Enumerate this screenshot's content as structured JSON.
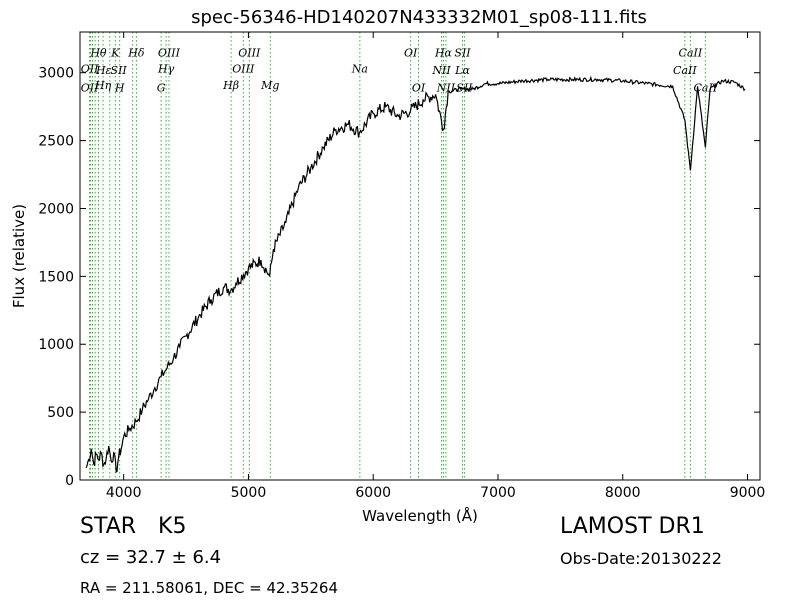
{
  "chart_data": {
    "type": "line",
    "title": "spec-56346-HD140207N433332M01_sp08-111.fits",
    "xlabel": "Wavelength (Å)",
    "ylabel": "Flux (relative)",
    "xlim": [
      3650,
      9100
    ],
    "ylim": [
      0,
      3300
    ],
    "xticks": [
      4000,
      5000,
      6000,
      7000,
      8000,
      9000
    ],
    "yticks": [
      0,
      500,
      1000,
      1500,
      2000,
      2500,
      3000
    ],
    "grid": false,
    "series": [
      {
        "color": "#000000",
        "x": [
          3700,
          3720,
          3740,
          3760,
          3780,
          3800,
          3820,
          3840,
          3860,
          3880,
          3900,
          3920,
          3940,
          3960,
          3980,
          4000,
          4050,
          4100,
          4150,
          4200,
          4250,
          4300,
          4350,
          4400,
          4450,
          4500,
          4600,
          4700,
          4800,
          4860,
          4900,
          5000,
          5100,
          5170,
          5200,
          5300,
          5400,
          5500,
          5600,
          5700,
          5800,
          5890,
          6000,
          6100,
          6200,
          6300,
          6400,
          6500,
          6563,
          6600,
          6700,
          6800,
          6900,
          7000,
          7200,
          7400,
          7600,
          7800,
          8000,
          8200,
          8400,
          8498,
          8542,
          8600,
          8662,
          8700,
          8800,
          8900,
          8980
        ],
        "y": [
          90,
          150,
          230,
          120,
          190,
          150,
          200,
          110,
          160,
          250,
          140,
          200,
          60,
          170,
          230,
          320,
          380,
          430,
          520,
          600,
          680,
          760,
          830,
          900,
          980,
          1060,
          1200,
          1330,
          1420,
          1400,
          1450,
          1560,
          1620,
          1500,
          1700,
          1900,
          2150,
          2300,
          2450,
          2580,
          2620,
          2560,
          2700,
          2750,
          2680,
          2720,
          2800,
          2840,
          2580,
          2860,
          2880,
          2880,
          2920,
          2920,
          2940,
          2950,
          2950,
          2950,
          2940,
          2920,
          2900,
          2650,
          2280,
          2900,
          2450,
          2880,
          2940,
          2930,
          2880
        ]
      }
    ],
    "lines": {
      "color": "#3aa83a",
      "wavelengths": [
        3727,
        3734,
        3750,
        3771,
        3798,
        3835,
        3889,
        3933,
        3968,
        4072,
        4102,
        4300,
        4340,
        4363,
        4861,
        4959,
        5007,
        5175,
        5893,
        6300,
        6363,
        6548,
        6563,
        6583,
        6716,
        6731,
        8498,
        8542,
        8662
      ],
      "labels": [
        {
          "text": "OII",
          "x": 3727,
          "y": 3000
        },
        {
          "text": "OII",
          "x": 3727,
          "y": 2860
        },
        {
          "text": "Hθ",
          "x": 3798,
          "y": 3120
        },
        {
          "text": "Hε",
          "x": 3840,
          "y": 2990
        },
        {
          "text": "Hη",
          "x": 3835,
          "y": 2880
        },
        {
          "text": "K",
          "x": 3933,
          "y": 3120
        },
        {
          "text": "SII",
          "x": 3960,
          "y": 2990
        },
        {
          "text": "H",
          "x": 3968,
          "y": 2860
        },
        {
          "text": "Hδ",
          "x": 4102,
          "y": 3120
        },
        {
          "text": "OIII",
          "x": 4363,
          "y": 3120
        },
        {
          "text": "Hγ",
          "x": 4340,
          "y": 3000
        },
        {
          "text": "G",
          "x": 4300,
          "y": 2860
        },
        {
          "text": "OIII",
          "x": 5007,
          "y": 3120
        },
        {
          "text": "OIII",
          "x": 4959,
          "y": 3000
        },
        {
          "text": "Hβ",
          "x": 4861,
          "y": 2880
        },
        {
          "text": "Mg",
          "x": 5175,
          "y": 2880
        },
        {
          "text": "Na",
          "x": 5893,
          "y": 3000
        },
        {
          "text": "OI",
          "x": 6300,
          "y": 3120
        },
        {
          "text": "OI",
          "x": 6363,
          "y": 2860
        },
        {
          "text": "Hα",
          "x": 6563,
          "y": 3120
        },
        {
          "text": "SII",
          "x": 6716,
          "y": 3120
        },
        {
          "text": "NII",
          "x": 6548,
          "y": 2990
        },
        {
          "text": "Lα",
          "x": 6716,
          "y": 2990
        },
        {
          "text": "NII",
          "x": 6583,
          "y": 2860
        },
        {
          "text": "SII",
          "x": 6731,
          "y": 2860
        },
        {
          "text": "CaII",
          "x": 8542,
          "y": 3120
        },
        {
          "text": "CaII",
          "x": 8498,
          "y": 2990
        },
        {
          "text": "CaII",
          "x": 8662,
          "y": 2860
        }
      ]
    }
  },
  "info": {
    "object_type": "STAR",
    "subclass": "K5",
    "cz": "cz = 32.7  ± 6.4",
    "radec": "RA = 211.58061, DEC = 42.35264",
    "survey": "LAMOST DR1",
    "obs_date": "Obs-Date:20130222"
  }
}
